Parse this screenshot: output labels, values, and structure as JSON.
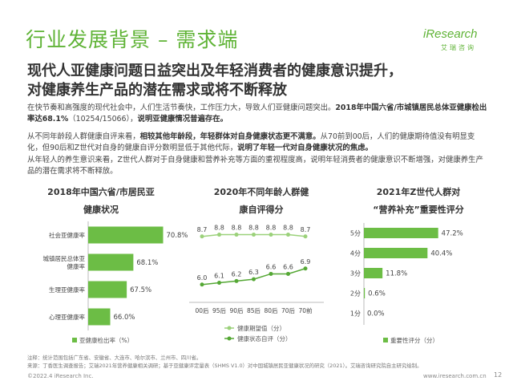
{
  "title": "行业发展背景 – 需求端",
  "logo": {
    "main": "iResearch",
    "sub": "艾瑞咨询"
  },
  "headline": [
    "现代人亚健康问题日益突出及年轻消费者的健康意识提升，",
    "对健康养生产品的潜在需求或将不断释放"
  ],
  "paragraphs": [
    {
      "normal": "在快节奏和高强度的现代社会中，人们生活节奏快，工作压力大，导致人们亚健康问题突出。",
      "bold": "2018年中国六省/市城镇居民总体亚健康检出率达68.1%",
      "normal2": "（10254/15066），",
      "bold2": "说明亚健康情况普遍存在。"
    },
    {
      "normal": "从不同年龄段人群健康自评来看，",
      "bold": "相较其他年龄段，年轻群体对自身健康状态更不满意。",
      "normal2": "从70前到00后，人们的健康期待值没有明显变化，但90后和Z世代对自身的健康自评分数明显低于其他代际，",
      "bold2": "说明了年轻一代对自身健康状况的焦虑。"
    },
    {
      "normal": "从年轻人的养生意识来看，Z世代人群对于自身健康和营养补充等方面的重视程度高，说明年轻消费者的健康意识不断增强，对健康养生产品的潜在需求将不断释放。",
      "bold": "",
      "normal2": "",
      "bold2": ""
    }
  ],
  "chart_titles": [
    [
      "2018年中国六省/市居民亚",
      "健康状况"
    ],
    [
      "2020年不同年龄人群健",
      "康自评得分"
    ],
    [
      "2021年Z世代人群对",
      "“营养补充”重要性评分"
    ]
  ],
  "chart_data": [
    {
      "type": "bar",
      "orientation": "horizontal",
      "title": "2018年中国六省/市居民亚健康状况",
      "categories": [
        "社会亚健康率",
        "城镇居民总体亚健康率",
        "生理亚健康率",
        "心理亚健康率"
      ],
      "category_lines": [
        [
          "社会亚健康率"
        ],
        [
          "城镇居民总体亚",
          "健康率"
        ],
        [
          "生理亚健康率"
        ],
        [
          "心理亚健康率"
        ]
      ],
      "series": [
        {
          "name": "亚健康检出率（%）",
          "values": [
            70.8,
            68.1,
            67.5,
            66.0
          ]
        }
      ],
      "value_labels": [
        "70.8%",
        "68.1%",
        "67.5%",
        "66.0%"
      ],
      "xlim": [
        64,
        72
      ],
      "legend": "bottom",
      "color": "#6cbd45"
    },
    {
      "type": "line",
      "title": "2020年不同年龄人群健康自评得分",
      "categories": [
        "00后",
        "95后",
        "90后",
        "85后",
        "80后",
        "70后",
        "70前"
      ],
      "series": [
        {
          "name": "健康期望值（分）",
          "values": [
            8.7,
            8.8,
            8.8,
            8.8,
            8.8,
            8.8,
            8.7
          ],
          "labels": [
            "8.7",
            "8.8",
            "8.8",
            "8.8",
            "8.8",
            "8.8",
            "8.7"
          ],
          "color": "#9bd17a"
        },
        {
          "name": "健康状态自评（分）",
          "values": [
            6.0,
            6.1,
            6.2,
            6.3,
            6.6,
            6.6,
            6.9
          ],
          "labels": [
            "6.0",
            "6.1",
            "6.2",
            "6.3",
            "6.6",
            "6.6",
            "6.9"
          ],
          "color": "#55a835"
        }
      ],
      "ylim": [
        5.0,
        9.5
      ],
      "legend": "bottom"
    },
    {
      "type": "bar",
      "orientation": "horizontal",
      "title": "2021年Z世代人群对“营养补充”重要性评分",
      "categories": [
        "5分",
        "4分",
        "3分",
        "2分",
        "1分"
      ],
      "series": [
        {
          "name": "重要性评分（分）",
          "values": [
            47.2,
            40.4,
            11.8,
            0.6,
            0.0
          ]
        }
      ],
      "value_labels": [
        "47.2%",
        "40.4%",
        "11.8%",
        "0.6%",
        "0.0%"
      ],
      "xlim": [
        0,
        55
      ],
      "legend": "bottom",
      "color": "#6cbd45"
    }
  ],
  "footer": {
    "note_lines": [
      "注释：统计范围包括广东省、安徽省、大连市、哈尔滨市、兰州市、四川省。",
      "来源：丁香医生调查报告；艾瑞2021年营养健康相关调研；基于亚健康评定量表（SHMS V1.0）对中国城镇居民亚健康状况的研究（2021）。艾瑞咨询研究院自主研究绘制。"
    ],
    "copyright": "©2022.4 iResearch Inc.",
    "site": "www.iresearch.com.cn",
    "page": "12"
  },
  "colors": {
    "accent": "#5fb336",
    "bar": "#6cbd45",
    "line_light": "#9bd17a",
    "line_dark": "#55a835"
  }
}
